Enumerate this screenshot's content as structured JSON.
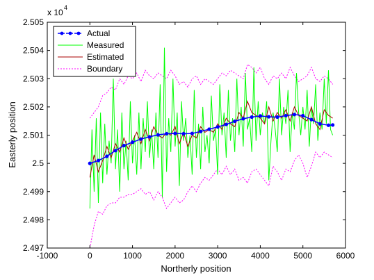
{
  "chart_data": {
    "type": "line",
    "xlabel": "Northerly position",
    "ylabel": "Easterly position",
    "y_exponent_label": "x 10",
    "y_exponent_power": "4",
    "xlim": [
      -1000,
      6000
    ],
    "ylim": [
      24970,
      25050
    ],
    "x_ticks": [
      -1000,
      0,
      1000,
      2000,
      3000,
      4000,
      5000,
      6000
    ],
    "x_tick_labels": [
      "-1000",
      "0",
      "1000",
      "2000",
      "3000",
      "4000",
      "5000",
      "6000"
    ],
    "y_ticks": [
      24970,
      24980,
      24990,
      25000,
      25010,
      25020,
      25030,
      25040,
      25050
    ],
    "y_tick_labels": [
      "2.497",
      "2.498",
      "2.499",
      "2.5",
      "2.501",
      "2.502",
      "2.503",
      "2.504",
      "2.505"
    ],
    "grid": false,
    "legend_position": "top-left",
    "legend": [
      {
        "label": "Actual",
        "color": "#0000ff",
        "style": "dash-dot-marker"
      },
      {
        "label": "Measured",
        "color": "#00ff00",
        "style": "solid"
      },
      {
        "label": "Estimated",
        "color": "#aa0000",
        "style": "solid"
      },
      {
        "label": "Boundary",
        "color": "#ff00ff",
        "style": "dotted"
      }
    ],
    "series": [
      {
        "name": "Actual",
        "color": "#0000ff",
        "x": [
          0,
          200,
          400,
          600,
          800,
          1000,
          1200,
          1400,
          1600,
          1800,
          2000,
          2200,
          2400,
          2600,
          2800,
          3000,
          3200,
          3400,
          3600,
          3800,
          4000,
          4200,
          4400,
          4600,
          4800,
          5000,
          5200,
          5400,
          5600,
          5700
        ],
        "y": [
          25000.0,
          25001.0,
          25002.5,
          25004.5,
          25006.3,
          25007.5,
          25008.6,
          25009.4,
          25010.1,
          25010.5,
          25010.6,
          25010.5,
          25010.6,
          25011.3,
          25012.1,
          25012.9,
          25013.8,
          25014.9,
          25015.8,
          25016.4,
          25016.8,
          25016.5,
          25016.4,
          25016.9,
          25017.3,
          25016.9,
          25015.5,
          25014.0,
          25013.5,
          25013.6
        ]
      },
      {
        "name": "Measured",
        "color": "#00ff00",
        "x": [
          0,
          50,
          100,
          150,
          200,
          250,
          300,
          350,
          400,
          450,
          500,
          550,
          600,
          650,
          700,
          750,
          800,
          850,
          900,
          950,
          1000,
          1050,
          1100,
          1150,
          1200,
          1250,
          1300,
          1350,
          1400,
          1450,
          1500,
          1550,
          1600,
          1650,
          1700,
          1750,
          1800,
          1850,
          1900,
          1950,
          2000,
          2050,
          2100,
          2150,
          2200,
          2250,
          2300,
          2350,
          2400,
          2450,
          2500,
          2550,
          2600,
          2650,
          2700,
          2750,
          2800,
          2850,
          2900,
          2950,
          3000,
          3050,
          3100,
          3150,
          3200,
          3250,
          3300,
          3350,
          3400,
          3450,
          3500,
          3550,
          3600,
          3650,
          3700,
          3750,
          3800,
          3850,
          3900,
          3950,
          4000,
          4050,
          4100,
          4150,
          4200,
          4250,
          4300,
          4350,
          4400,
          4450,
          4500,
          4550,
          4600,
          4650,
          4700,
          4750,
          4800,
          4850,
          4900,
          4950,
          5000,
          5050,
          5100,
          5150,
          5200,
          5250,
          5300,
          5350,
          5400,
          5450,
          5500,
          5550,
          5600,
          5650,
          5700
        ],
        "y": [
          24984,
          25012,
          24990,
          25016,
          24986,
          25018,
          24993,
          25014,
          24996,
          25008,
          25000,
          25030,
          24998,
          25012,
          24990,
          25018,
          24998,
          25008,
          24994,
          25022,
          25000,
          25010,
          24996,
          25018,
          24998,
          25016,
          25004,
          25022,
          25002,
          25012,
          24998,
          25018,
          25002,
          25028,
          24988,
          25041,
          24997,
          25016,
          25004,
          25030,
          25006,
          25018,
          24992,
          25022,
          25008,
          25016,
          25002,
          25010,
          24996,
          25026,
          25002,
          25014,
          24998,
          25020,
          25004,
          25010,
          25000,
          25024,
          25008,
          25012,
          24996,
          25028,
          25010,
          25018,
          25002,
          25026,
          25008,
          25016,
          25004,
          25030,
          25010,
          25020,
          25006,
          25032,
          25012,
          25016,
          25004,
          25034,
          25008,
          25022,
          25010,
          25018,
          25014,
          25022,
          24994,
          25008,
          25018,
          25012,
          25004,
          25030,
          25010,
          25020,
          25014,
          25026,
          25004,
          25018,
          25012,
          25032,
          25018,
          25010,
          25020,
          25012,
          25026,
          25006,
          25020,
          25014,
          25028,
          25008,
          25018,
          25012,
          25030,
          25014,
          25033,
          25012,
          25010
        ]
      },
      {
        "name": "Estimated",
        "color": "#aa0000",
        "x": [
          0,
          100,
          200,
          300,
          400,
          500,
          600,
          700,
          800,
          900,
          1000,
          1100,
          1200,
          1300,
          1400,
          1500,
          1600,
          1700,
          1800,
          1900,
          2000,
          2100,
          2200,
          2300,
          2400,
          2500,
          2600,
          2700,
          2800,
          2900,
          3000,
          3100,
          3200,
          3300,
          3400,
          3500,
          3600,
          3700,
          3800,
          3900,
          4000,
          4100,
          4200,
          4300,
          4400,
          4500,
          4600,
          4700,
          4800,
          4900,
          5000,
          5100,
          5200,
          5300,
          5400,
          5500,
          5600,
          5700
        ],
        "y": [
          24995,
          25003,
          24997,
          25001,
          25006,
          25002,
          25007,
          25004,
          25009,
          25005,
          25008,
          25011,
          25007,
          25012,
          25008,
          25013,
          25010,
          25009,
          25011,
          25010,
          25013,
          25007,
          25011,
          25006,
          25010,
          25009,
          25013,
          25011,
          25012,
          25011,
          25014,
          25012,
          25016,
          25014,
          25013,
          25018,
          25016,
          25022,
          25018,
          25017,
          25016,
          25014,
          25020,
          25015,
          25018,
          25016,
          25019,
          25015,
          25020,
          25017,
          25016,
          25015,
          25020,
          25014,
          25012,
          25019,
          25017,
          25016
        ]
      },
      {
        "name": "Boundary upper",
        "color": "#ff00ff",
        "x": [
          0,
          100,
          200,
          300,
          400,
          500,
          600,
          700,
          800,
          900,
          1000,
          1100,
          1200,
          1300,
          1400,
          1500,
          1600,
          1700,
          1800,
          1900,
          2000,
          2100,
          2200,
          2300,
          2400,
          2500,
          2600,
          2700,
          2800,
          2900,
          3000,
          3100,
          3200,
          3300,
          3400,
          3500,
          3600,
          3700,
          3800,
          3900,
          4000,
          4100,
          4200,
          4300,
          4400,
          4500,
          4600,
          4700,
          4800,
          4900,
          5000,
          5100,
          5200,
          5300,
          5400,
          5500,
          5600,
          5700
        ],
        "y": [
          25016,
          25018,
          25020,
          25024,
          25025,
          25027,
          25026,
          25030,
          25028,
          25031,
          25030,
          25032,
          25029,
          25033,
          25031,
          25030,
          25032,
          25031,
          25030,
          25033,
          25031,
          25028,
          25029,
          25027,
          25030,
          25031,
          25028,
          25030,
          25029,
          25028,
          25030,
          25032,
          25031,
          25033,
          25032,
          25031,
          25030,
          25035,
          25034,
          25032,
          25034,
          25030,
          25028,
          25031,
          25030,
          25032,
          25030,
          25034,
          25031,
          25029,
          25030,
          25031,
          25034,
          25030,
          25029,
          25031,
          25030,
          25028
        ]
      },
      {
        "name": "Boundary lower",
        "color": "#ff00ff",
        "x": [
          0,
          100,
          200,
          300,
          400,
          500,
          600,
          700,
          800,
          900,
          1000,
          1100,
          1200,
          1300,
          1400,
          1500,
          1600,
          1700,
          1800,
          1900,
          2000,
          2100,
          2200,
          2300,
          2400,
          2500,
          2600,
          2700,
          2800,
          2900,
          3000,
          3100,
          3200,
          3300,
          3400,
          3500,
          3600,
          3700,
          3800,
          3900,
          4000,
          4100,
          4200,
          4300,
          4400,
          4500,
          4600,
          4700,
          4800,
          4900,
          5000,
          5100,
          5200,
          5300,
          5400,
          5500,
          5600,
          5700
        ],
        "y": [
          24970,
          24978,
          24983,
          24982,
          24985,
          24986,
          24986,
          24988,
          24988,
          24989,
          24989,
          24990,
          24991,
          24989,
          24990,
          24987,
          24990,
          24988,
          24984,
          24986,
          24988,
          24986,
          24987,
          24990,
          24992,
          24990,
          24993,
          24995,
          24994,
          24996,
          24998,
          24996,
          24999,
          24996,
          24998,
          24994,
          24995,
          24993,
          24997,
          24998,
          24996,
          24994,
          24992,
          24999,
          24997,
          24994,
          24998,
          24997,
          25001,
          25003,
          25000,
          24995,
          24999,
          25004,
          25002,
          25004,
          25003,
          25002
        ]
      }
    ]
  }
}
